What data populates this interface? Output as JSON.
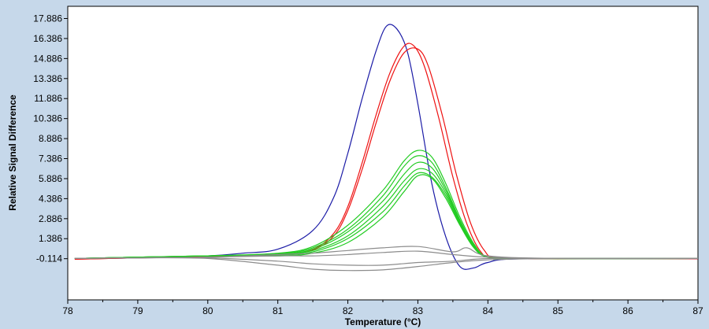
{
  "chart_data": {
    "type": "line",
    "title": "",
    "xlabel": "Temperature (°C)",
    "ylabel": "Relative Signal Difference",
    "xlim": [
      78,
      87
    ],
    "ylim": [
      -3.2,
      18.8
    ],
    "x_ticks": [
      78,
      79,
      80,
      81,
      82,
      83,
      84,
      85,
      86,
      87
    ],
    "x_tick_labels": [
      "78",
      "79",
      "80",
      "81",
      "82",
      "83",
      "84",
      "85",
      "86",
      "87"
    ],
    "y_ticks": [
      -0.114,
      1.386,
      2.886,
      4.386,
      5.886,
      7.386,
      8.886,
      10.386,
      11.886,
      13.386,
      14.886,
      16.386,
      17.886
    ],
    "y_tick_labels": [
      "-0.114",
      "1.386",
      "2.886",
      "4.386",
      "5.886",
      "7.386",
      "8.886",
      "10.386",
      "11.886",
      "13.386",
      "14.886",
      "16.386",
      "17.886"
    ],
    "grid": false,
    "legend": "none",
    "colors": {
      "background": "#c6d8ea",
      "plot_area": "#ffffff",
      "blue": "#1a1aa6",
      "red": "#ee1111",
      "green": "#22cc22",
      "gray": "#8c8c8c"
    },
    "series": [
      {
        "color": "#1a1aa6",
        "x": [
          78.1,
          79.0,
          80.0,
          80.5,
          81.0,
          81.5,
          81.8,
          82.0,
          82.2,
          82.4,
          82.55,
          82.7,
          82.85,
          83.0,
          83.2,
          83.4,
          83.6,
          83.8,
          84.0,
          84.5,
          87.0
        ],
        "y": [
          -0.1,
          -0.05,
          0.1,
          0.3,
          0.6,
          2.0,
          4.5,
          7.8,
          11.8,
          15.4,
          17.3,
          17.1,
          15.4,
          11.5,
          5.5,
          1.5,
          -0.7,
          -0.8,
          -0.4,
          -0.12,
          -0.11
        ]
      },
      {
        "color": "#ee1111",
        "x": [
          78.1,
          79.0,
          80.0,
          81.0,
          81.5,
          81.8,
          82.0,
          82.2,
          82.4,
          82.6,
          82.8,
          82.95,
          83.1,
          83.3,
          83.5,
          83.7,
          83.9,
          84.1,
          85.0,
          87.0
        ],
        "y": [
          -0.15,
          -0.05,
          0.05,
          0.2,
          0.6,
          1.8,
          3.8,
          7.0,
          10.6,
          13.8,
          15.8,
          15.8,
          14.2,
          10.4,
          6.0,
          2.5,
          0.4,
          -0.05,
          -0.11,
          -0.11
        ]
      },
      {
        "color": "#ee1111",
        "x": [
          78.1,
          79.0,
          80.0,
          81.0,
          81.5,
          81.8,
          82.0,
          82.2,
          82.4,
          82.6,
          82.8,
          83.0,
          83.15,
          83.35,
          83.55,
          83.75,
          83.95,
          84.15,
          85.0,
          87.0
        ],
        "y": [
          -0.15,
          -0.05,
          0.05,
          0.2,
          0.55,
          1.6,
          3.5,
          6.5,
          10.0,
          13.2,
          15.3,
          15.6,
          14.3,
          10.6,
          6.2,
          2.6,
          0.5,
          -0.05,
          -0.11,
          -0.11
        ]
      },
      {
        "color": "#22cc22",
        "x": [
          78.1,
          79.0,
          80.0,
          81.0,
          81.5,
          82.0,
          82.5,
          82.8,
          83.0,
          83.2,
          83.4,
          83.6,
          83.8,
          84.0,
          84.5,
          87.0
        ],
        "y": [
          -0.1,
          0.0,
          0.1,
          0.3,
          0.8,
          2.4,
          5.0,
          7.2,
          8.0,
          7.5,
          5.5,
          3.0,
          1.0,
          0.0,
          -0.1,
          -0.1
        ]
      },
      {
        "color": "#22cc22",
        "x": [
          78.1,
          79.0,
          80.0,
          81.0,
          81.5,
          82.0,
          82.5,
          82.8,
          83.0,
          83.2,
          83.4,
          83.6,
          83.8,
          84.0,
          84.5,
          87.0
        ],
        "y": [
          -0.1,
          0.0,
          0.1,
          0.25,
          0.7,
          2.1,
          4.6,
          6.8,
          7.6,
          7.1,
          5.2,
          2.8,
          0.9,
          0.0,
          -0.1,
          -0.1
        ]
      },
      {
        "color": "#22cc22",
        "x": [
          78.1,
          79.0,
          80.0,
          81.0,
          81.5,
          82.0,
          82.5,
          82.8,
          83.0,
          83.2,
          83.4,
          83.6,
          83.8,
          84.0,
          84.5,
          87.0
        ],
        "y": [
          -0.1,
          0.0,
          0.1,
          0.2,
          0.6,
          1.9,
          4.2,
          6.2,
          7.1,
          6.7,
          5.0,
          2.7,
          0.9,
          0.0,
          -0.1,
          -0.1
        ]
      },
      {
        "color": "#22cc22",
        "x": [
          78.1,
          79.0,
          80.0,
          81.0,
          81.5,
          82.0,
          82.5,
          82.8,
          83.0,
          83.2,
          83.4,
          83.6,
          83.8,
          84.0,
          84.5,
          87.0
        ],
        "y": [
          -0.1,
          0.0,
          0.1,
          0.2,
          0.5,
          1.6,
          3.8,
          5.7,
          6.6,
          6.3,
          4.8,
          2.6,
          0.8,
          0.0,
          -0.1,
          -0.1
        ]
      },
      {
        "color": "#22cc22",
        "x": [
          78.1,
          79.0,
          80.0,
          81.0,
          81.5,
          82.0,
          82.5,
          82.8,
          83.0,
          83.2,
          83.4,
          83.6,
          83.8,
          84.0,
          84.5,
          87.0
        ],
        "y": [
          -0.1,
          0.0,
          0.1,
          0.15,
          0.4,
          1.4,
          3.4,
          5.3,
          6.3,
          6.0,
          4.6,
          2.5,
          0.8,
          0.0,
          -0.1,
          -0.1
        ]
      },
      {
        "color": "#22cc22",
        "x": [
          78.1,
          79.0,
          80.0,
          81.0,
          81.5,
          82.0,
          82.5,
          82.8,
          83.0,
          83.2,
          83.4,
          83.6,
          83.8,
          84.0,
          84.5,
          87.0
        ],
        "y": [
          -0.1,
          0.0,
          0.1,
          0.1,
          0.3,
          1.1,
          3.0,
          4.9,
          6.1,
          5.9,
          4.4,
          2.4,
          0.7,
          0.0,
          -0.1,
          -0.1
        ]
      },
      {
        "color": "#8c8c8c",
        "x": [
          78.1,
          79.0,
          80.0,
          81.0,
          81.5,
          82.0,
          82.5,
          83.0,
          83.5,
          83.7,
          84.0,
          85.0,
          87.0
        ],
        "y": [
          -0.1,
          -0.05,
          0.0,
          0.2,
          0.3,
          0.5,
          0.7,
          0.8,
          0.4,
          0.7,
          0.1,
          -0.1,
          -0.1
        ]
      },
      {
        "color": "#8c8c8c",
        "x": [
          78.1,
          79.0,
          80.0,
          81.0,
          81.5,
          82.0,
          82.5,
          83.0,
          83.5,
          84.0,
          85.0,
          87.0
        ],
        "y": [
          -0.1,
          -0.05,
          0.0,
          0.1,
          0.1,
          0.2,
          0.35,
          0.45,
          0.2,
          0.0,
          -0.1,
          -0.1
        ]
      },
      {
        "color": "#8c8c8c",
        "x": [
          78.1,
          79.0,
          80.0,
          81.0,
          81.5,
          82.0,
          82.5,
          83.0,
          83.5,
          84.0,
          85.0,
          87.0
        ],
        "y": [
          -0.1,
          -0.05,
          -0.05,
          -0.3,
          -0.5,
          -0.6,
          -0.6,
          -0.4,
          -0.3,
          -0.1,
          -0.1,
          -0.1
        ]
      },
      {
        "color": "#8c8c8c",
        "x": [
          78.1,
          79.0,
          80.0,
          81.0,
          81.5,
          82.0,
          82.5,
          83.0,
          83.5,
          84.0,
          85.0,
          87.0
        ],
        "y": [
          -0.1,
          -0.05,
          -0.1,
          -0.6,
          -0.9,
          -1.0,
          -0.95,
          -0.7,
          -0.4,
          -0.2,
          -0.1,
          -0.1
        ]
      }
    ]
  }
}
